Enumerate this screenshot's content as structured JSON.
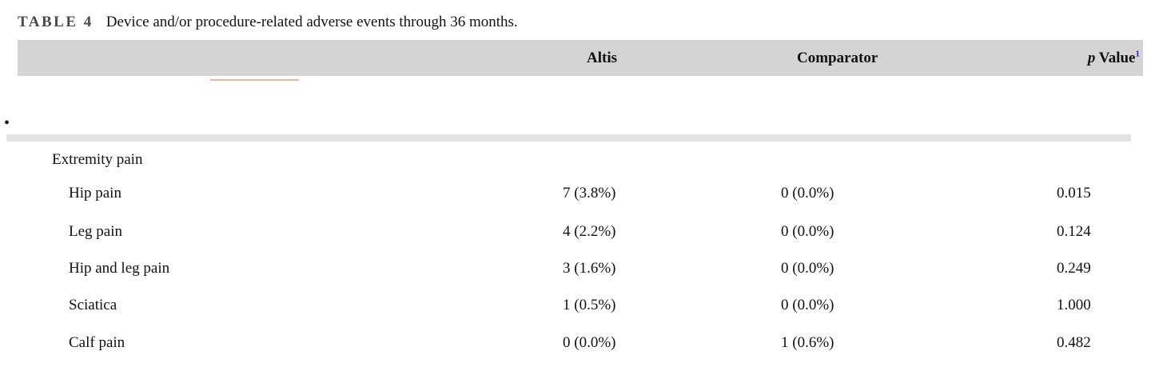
{
  "caption": {
    "label": "TABLE 4",
    "text": "Device and/or procedure-related adverse events through 36 months."
  },
  "header": {
    "col_altis": "Altis",
    "col_comparator": "Comparator",
    "col_p_italic": "p",
    "col_p_rest": " Value",
    "col_p_footnote": "1"
  },
  "bullet": "•",
  "section": {
    "title": "Extremity pain"
  },
  "rows": [
    {
      "name": "Hip pain",
      "altis": "7 (3.8%)",
      "comparator": "0 (0.0%)",
      "p": "0.015"
    },
    {
      "name": "Leg pain",
      "altis": "4 (2.2%)",
      "comparator": "0 (0.0%)",
      "p": "0.124"
    },
    {
      "name": "Hip and leg pain",
      "altis": "3 (1.6%)",
      "comparator": "0 (0.0%)",
      "p": "0.249"
    },
    {
      "name": "Sciatica",
      "altis": "1 (0.5%)",
      "comparator": "0 (0.0%)",
      "p": "1.000"
    },
    {
      "name": "Calf pain",
      "altis": "0 (0.0%)",
      "comparator": "1 (0.6%)",
      "p": "0.482"
    }
  ],
  "colors": {
    "header_band": "#d4d4d4",
    "divider": "#e3e3e3",
    "accent_line": "#f0b494",
    "footnote_link": "#1a2fbf"
  }
}
